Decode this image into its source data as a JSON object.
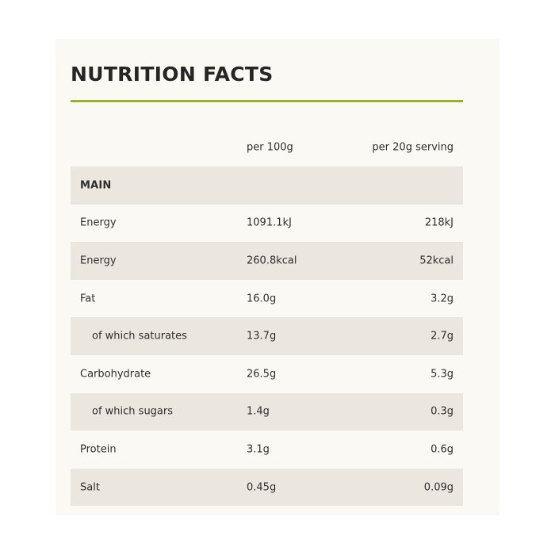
{
  "title": "NUTRITION FACTS",
  "colors": {
    "card_background": "#fbf9f3",
    "shaded_row": "#ebe7df",
    "accent_rule": "#96b12f",
    "text": "#2b2b2b"
  },
  "table": {
    "headers": {
      "nutrient": "",
      "per100": "per 100g",
      "serving": "per 20g serving"
    },
    "section": "MAIN",
    "rows": [
      {
        "name": "Energy",
        "per100": "1091.1kJ",
        "serving": "218kJ",
        "sub": false
      },
      {
        "name": "Energy",
        "per100": "260.8kcal",
        "serving": "52kcal",
        "sub": false
      },
      {
        "name": "Fat",
        "per100": "16.0g",
        "serving": "3.2g",
        "sub": false
      },
      {
        "name": "of which saturates",
        "per100": "13.7g",
        "serving": "2.7g",
        "sub": true
      },
      {
        "name": "Carbohydrate",
        "per100": "26.5g",
        "serving": "5.3g",
        "sub": false
      },
      {
        "name": "of which sugars",
        "per100": "1.4g",
        "serving": "0.3g",
        "sub": true
      },
      {
        "name": "Protein",
        "per100": "3.1g",
        "serving": "0.6g",
        "sub": false
      },
      {
        "name": "Salt",
        "per100": "0.45g",
        "serving": "0.09g",
        "sub": false
      }
    ]
  }
}
